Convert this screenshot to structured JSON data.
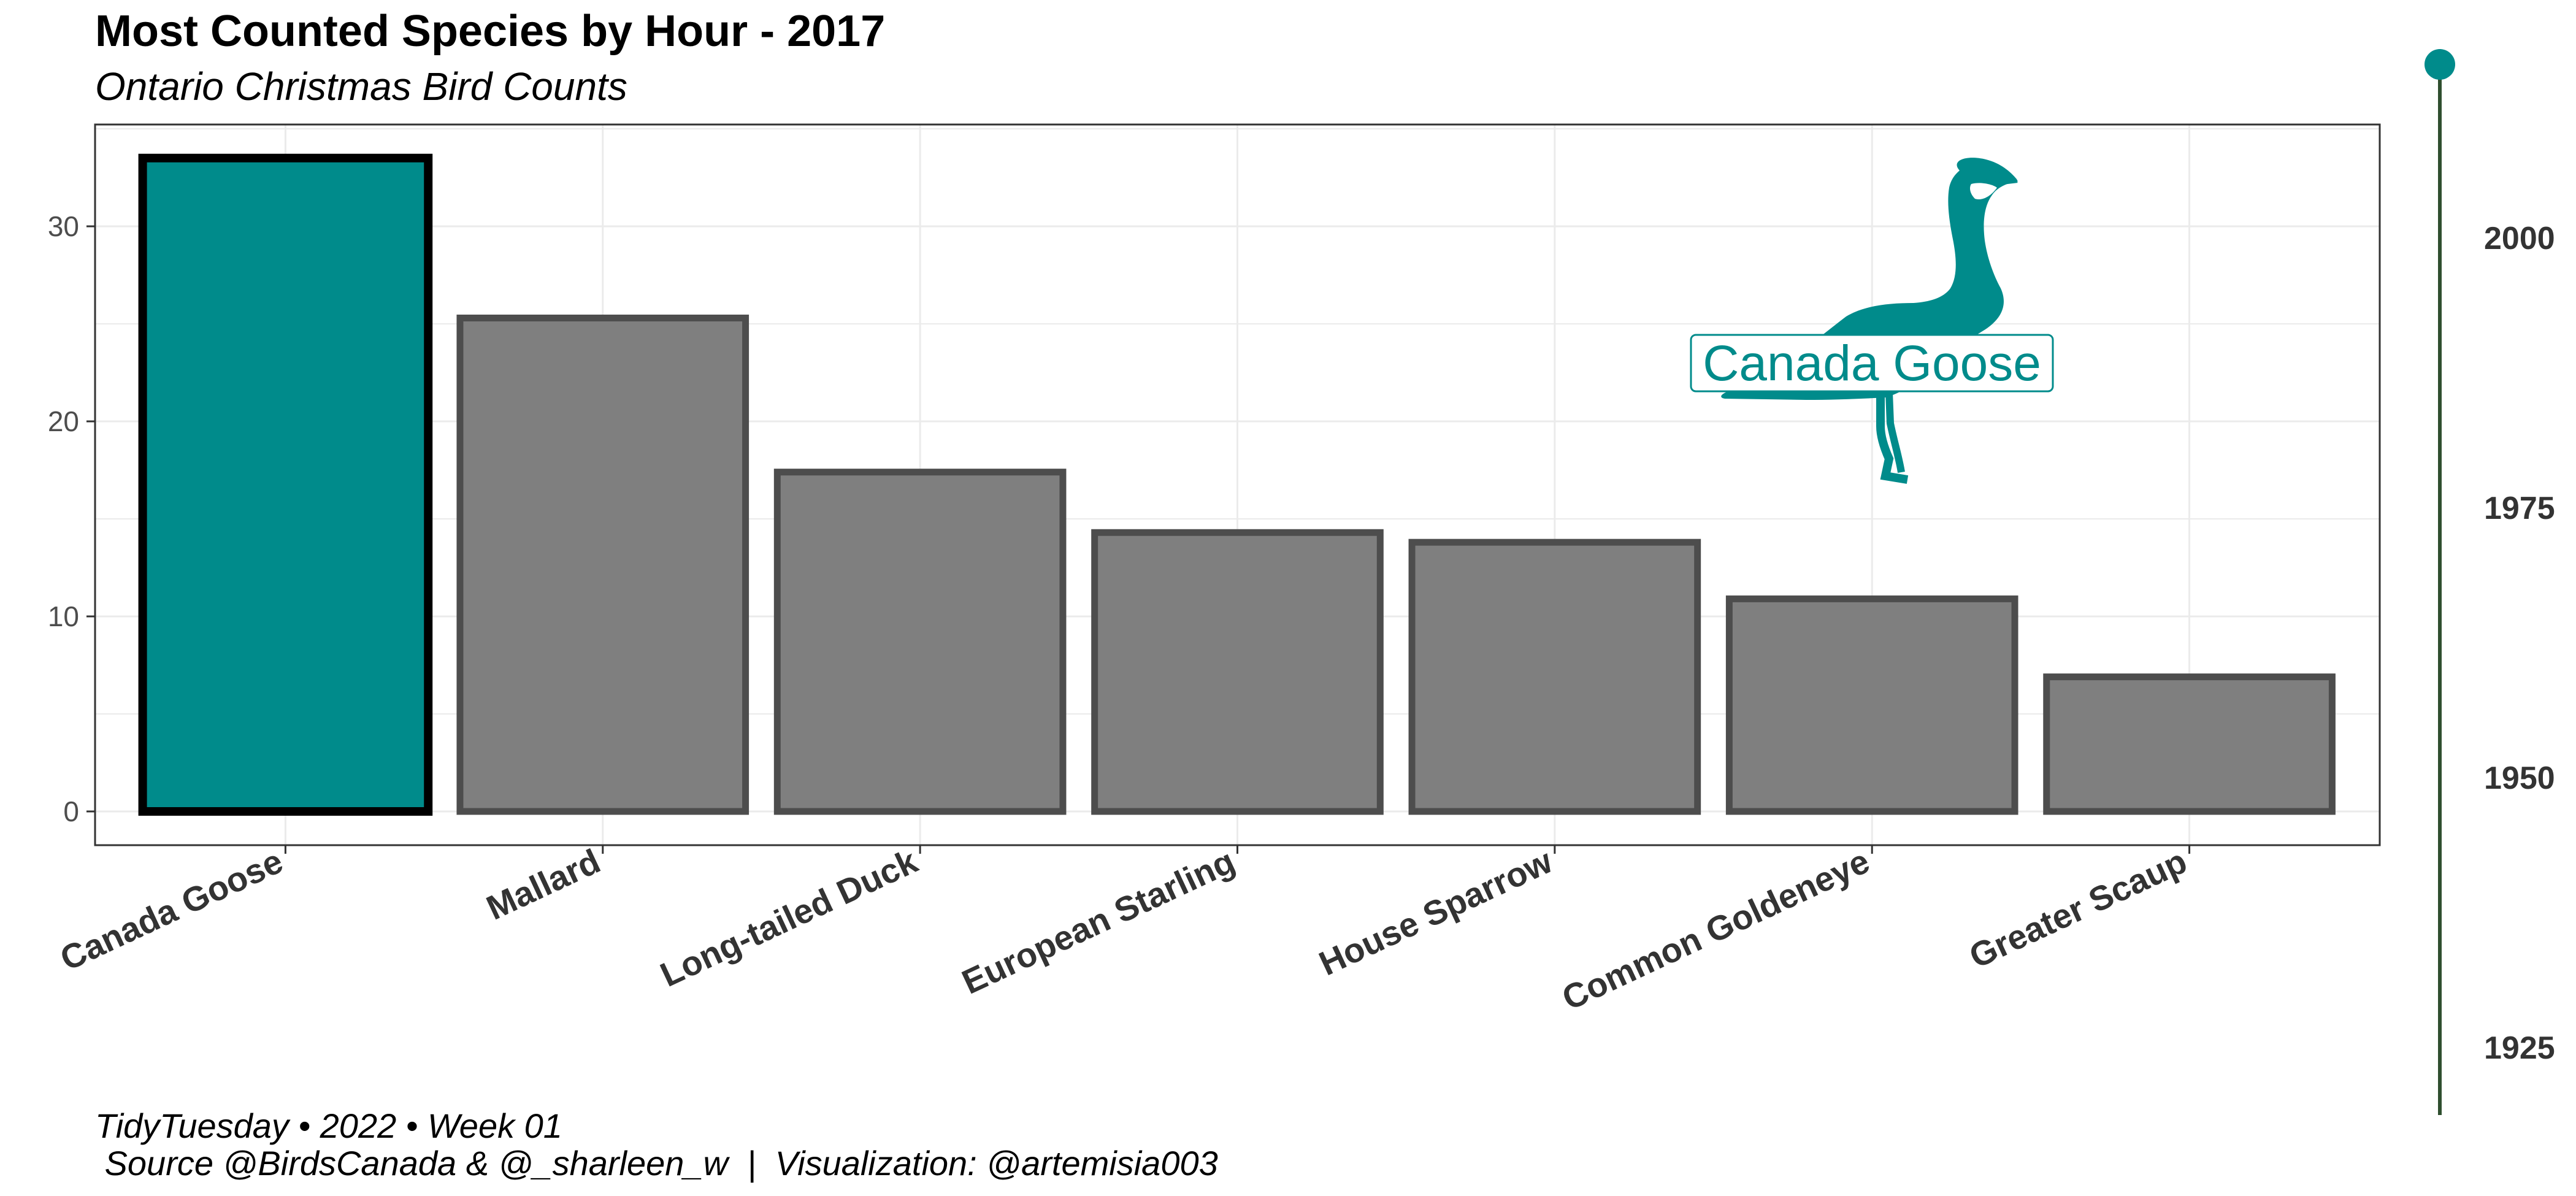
{
  "chart_data": {
    "type": "bar",
    "title": "Most Counted Species by Hour - 2017",
    "subtitle": "Ontario Christmas Bird Counts",
    "categories": [
      "Canada Goose",
      "Mallard",
      "Long-tailed Duck",
      "European Starling",
      "House Sparrow",
      "Common Goldeneye",
      "Greater Scaup"
    ],
    "values": [
      33.5,
      25.3,
      17.4,
      14.3,
      13.8,
      10.9,
      6.9
    ],
    "highlight": "Canada Goose",
    "ylim": [
      0,
      35
    ],
    "yticks": [
      0,
      10,
      20,
      30
    ],
    "xlabel": "",
    "ylabel": "",
    "grid": true,
    "colors": {
      "highlight_fill": "#008B8B",
      "highlight_stroke": "#000000",
      "bar_fill": "#7F7F7F",
      "bar_stroke": "#4D4D4D",
      "grid": "#EBEBEB",
      "panel_border": "#333333",
      "timeline_line": "#2F4F2F",
      "timeline_marker": "#008B8B"
    },
    "annotation": {
      "label": "Canada Goose",
      "icon": "canada-goose-silhouette-icon",
      "color": "#008B8B"
    },
    "timeline": {
      "range": [
        1920,
        2020
      ],
      "ticks": [
        "1925",
        "1950",
        "1975",
        "2000"
      ],
      "current": 2017
    },
    "caption": {
      "line1": "TidyTuesday • 2022 • Week 01",
      "line2": " Source @BirdsCanada & @_sharleen_w  |  Visualization: @artemisia003"
    }
  }
}
